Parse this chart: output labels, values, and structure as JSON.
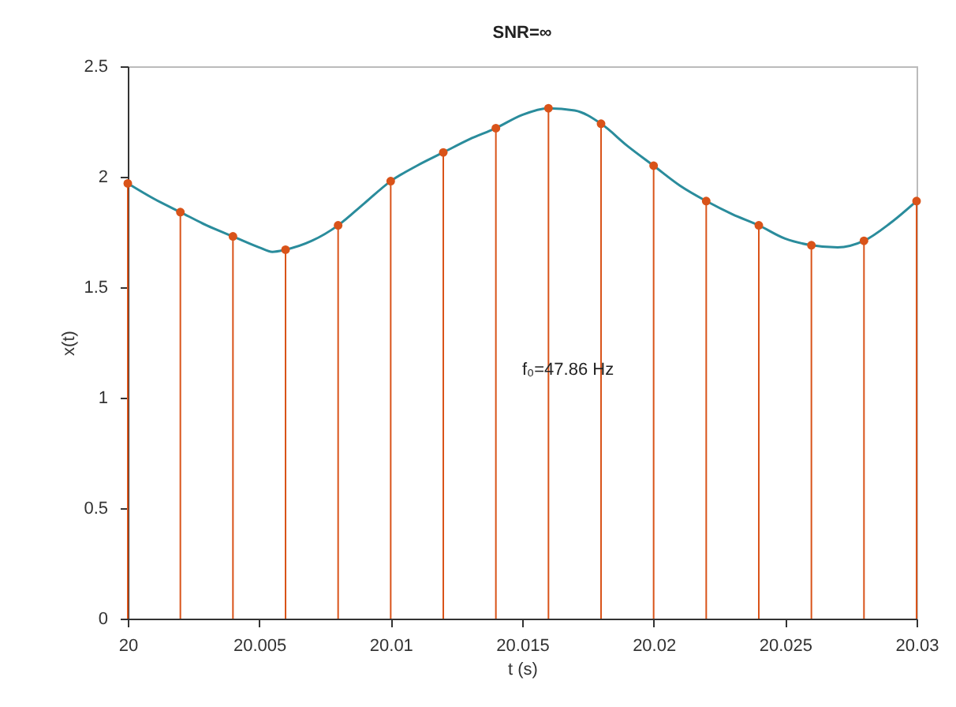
{
  "chart_data": {
    "type": "line",
    "title": "SNR=∞",
    "xlabel": "t (s)",
    "ylabel": "x(t)",
    "xlim": [
      20,
      20.03
    ],
    "xticks": [
      20,
      20.005,
      20.01,
      20.015,
      20.02,
      20.025,
      20.03
    ],
    "ylim": [
      0,
      2.5
    ],
    "yticks": [
      0,
      0.5,
      1,
      1.5,
      2,
      2.5
    ],
    "annotations": [
      "f₀=47.86 Hz"
    ],
    "series": [
      {
        "color": "#2a8c9c",
        "marker": "none",
        "x": [
          20,
          20.001,
          20.002,
          20.003,
          20.004,
          20.005,
          20.0055,
          20.006,
          20.007,
          20.008,
          20.009,
          20.01,
          20.011,
          20.012,
          20.013,
          20.014,
          20.015,
          20.016,
          20.017,
          20.018,
          20.019,
          20.02,
          20.021,
          20.022,
          20.023,
          20.024,
          20.025,
          20.026,
          20.027,
          20.028,
          20.029,
          20.03
        ],
        "values": [
          1.97,
          1.9,
          1.84,
          1.78,
          1.73,
          1.68,
          1.66,
          1.67,
          1.71,
          1.78,
          1.88,
          1.98,
          2.05,
          2.11,
          2.17,
          2.22,
          2.28,
          2.31,
          2.3,
          2.24,
          2.14,
          2.05,
          1.96,
          1.89,
          1.83,
          1.78,
          1.72,
          1.69,
          1.68,
          1.71,
          1.79,
          1.89
        ]
      },
      {
        "type": "lollipop",
        "color": "#d95319",
        "marker": "circle",
        "x": [
          20,
          20.002,
          20.004,
          20.006,
          20.008,
          20.01,
          20.012,
          20.014,
          20.016,
          20.018,
          20.02,
          20.022,
          20.024,
          20.026,
          20.028,
          20.03
        ],
        "values": [
          1.97,
          1.84,
          1.73,
          1.67,
          1.78,
          1.98,
          2.11,
          2.22,
          2.31,
          2.24,
          2.05,
          1.89,
          1.78,
          1.69,
          1.71,
          1.89
        ]
      }
    ]
  }
}
